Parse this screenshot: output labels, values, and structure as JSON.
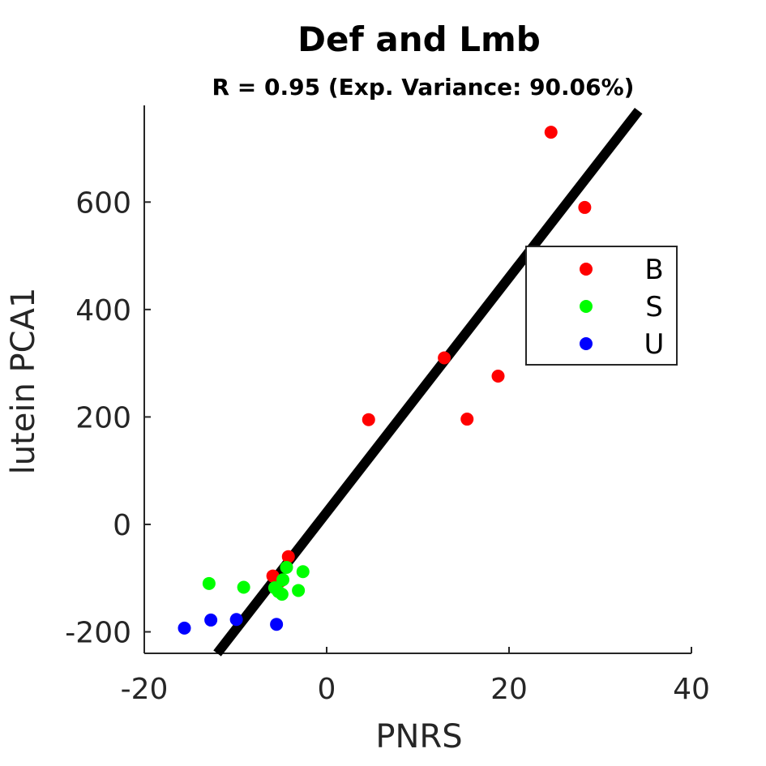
{
  "chart_data": {
    "type": "scatter",
    "title": "Def and Lmb",
    "subtitle": "R = 0.95 (Exp. Variance: 90.06%)",
    "xlabel": "PNRS",
    "ylabel": "lutein PCA1",
    "xlim": [
      -20,
      40
    ],
    "ylim": [
      -240,
      780
    ],
    "xticks": [
      -20,
      0,
      20,
      40
    ],
    "yticks": [
      -200,
      0,
      200,
      400,
      600
    ],
    "grid": false,
    "legend_position": "right",
    "series": [
      {
        "name": "B",
        "color": "#ff0000",
        "points": [
          [
            24.6,
            730
          ],
          [
            28.3,
            590
          ],
          [
            12.9,
            310
          ],
          [
            18.8,
            276
          ],
          [
            15.4,
            196
          ],
          [
            4.6,
            195
          ],
          [
            -4.2,
            -60
          ],
          [
            -5.9,
            -96
          ],
          [
            -5.0,
            -105
          ]
        ]
      },
      {
        "name": "S",
        "color": "#00ff00",
        "points": [
          [
            -12.9,
            -110
          ],
          [
            -9.1,
            -117
          ],
          [
            -4.4,
            -80
          ],
          [
            -2.6,
            -88
          ],
          [
            -3.1,
            -123
          ],
          [
            -4.8,
            -103
          ],
          [
            -5.3,
            -125
          ],
          [
            -4.9,
            -130
          ],
          [
            -5.7,
            -118
          ]
        ]
      },
      {
        "name": "U",
        "color": "#0000ff",
        "points": [
          [
            -15.6,
            -193
          ],
          [
            -12.7,
            -178
          ],
          [
            -9.9,
            -177
          ],
          [
            -5.5,
            -186
          ]
        ]
      }
    ],
    "fit_line": {
      "color": "#000000",
      "points": [
        [
          -12,
          -240
        ],
        [
          34.2,
          770
        ]
      ]
    }
  }
}
